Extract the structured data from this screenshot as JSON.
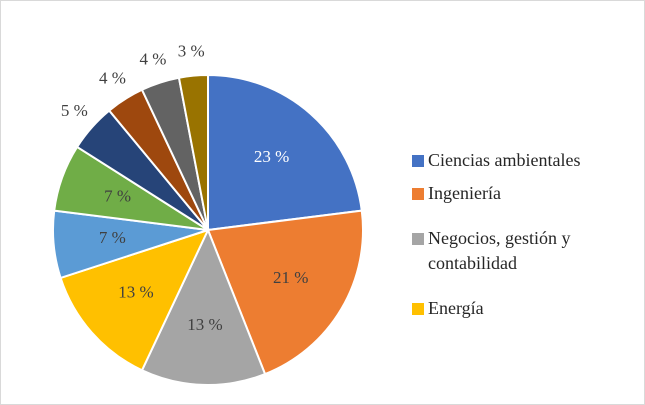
{
  "chart_data": {
    "type": "pie",
    "categories": [
      "Ciencias ambientales",
      "Ingeniería",
      "Negocios, gestión y contabilidad",
      "Energía",
      null,
      null,
      null,
      null,
      null,
      null
    ],
    "values": [
      23,
      21,
      13,
      13,
      7,
      7,
      5,
      4,
      4,
      3
    ],
    "value_labels": [
      "23 %",
      "21 %",
      "13 %",
      "13 %",
      "7 %",
      "7 %",
      "5 %",
      "4 %",
      "4 %",
      "3 %"
    ],
    "colors": [
      "#4472c4",
      "#ed7d31",
      "#a5a5a5",
      "#ffc000",
      "#5b9bd5",
      "#70ad47",
      "#264478",
      "#9e480e",
      "#636363",
      "#997300"
    ],
    "legend": "right"
  }
}
